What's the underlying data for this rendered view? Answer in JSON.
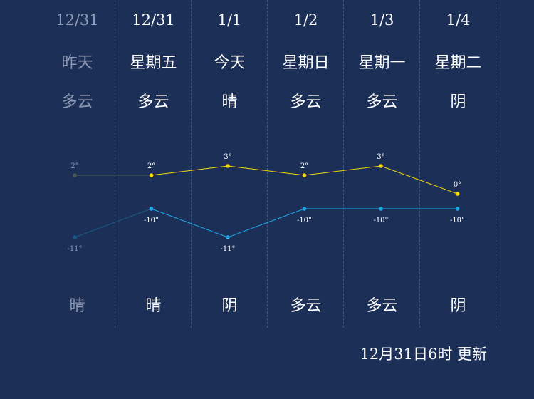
{
  "days": [
    {
      "date": "12/31",
      "week": "昨天",
      "weather_day": "多云",
      "weather_night": "晴",
      "past": true
    },
    {
      "date": "12/31",
      "week": "星期五",
      "weather_day": "多云",
      "weather_night": "晴",
      "past": false
    },
    {
      "date": "1/1",
      "week": "今天",
      "weather_day": "晴",
      "weather_night": "阴",
      "past": false
    },
    {
      "date": "1/2",
      "week": "星期日",
      "weather_day": "多云",
      "weather_night": "多云",
      "past": false
    },
    {
      "date": "1/3",
      "week": "星期一",
      "weather_day": "多云",
      "weather_night": "多云",
      "past": false
    },
    {
      "date": "1/4",
      "week": "星期二",
      "weather_day": "阴",
      "weather_night": "阴",
      "past": false
    }
  ],
  "chart_data": {
    "type": "line",
    "series": [
      {
        "values": [
          2,
          2,
          3,
          2,
          3,
          0
        ],
        "labels": [
          "2°",
          "2°",
          "3°",
          "2°",
          "3°",
          "0°"
        ]
      },
      {
        "values": [
          -11,
          -10,
          -11,
          -10,
          -10,
          -10
        ],
        "labels": [
          "-11°",
          "-10°",
          "-11°",
          "-10°",
          "-10°",
          "-10°"
        ]
      }
    ]
  },
  "colors": {
    "high": "#f5d90a",
    "low": "#1ea7e6",
    "past_high": "#4c5a55",
    "past_low": "#1a5a86"
  },
  "update_text": "12月31日6时 更新"
}
